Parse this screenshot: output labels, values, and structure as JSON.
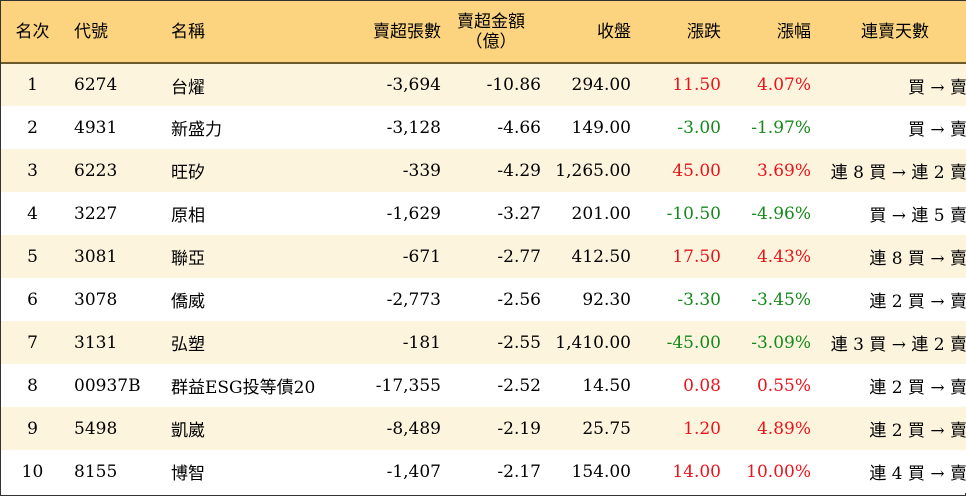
{
  "columns": {
    "rank": "名次",
    "code": "代號",
    "name": "名稱",
    "net_sell_shares": "賣超張數",
    "net_sell_amount_line1": "賣超金額",
    "net_sell_amount_line2": "（億）",
    "close": "收盤",
    "change": "漲跌",
    "change_pct": "漲幅",
    "consecutive_days": "連賣天數"
  },
  "colors": {
    "header_bg": "#fcd480",
    "odd_row_bg": "#fdf4de",
    "even_row_bg": "#ffffff",
    "up": "#e8141b",
    "down": "#15891a"
  },
  "rows": [
    {
      "rank": "1",
      "code": "6274",
      "name": "台燿",
      "shares": "-3,694",
      "amount": "-10.86",
      "close": "294.00",
      "change": "11.50",
      "pct": "4.07%",
      "dir": "up",
      "days": "買 → 賣"
    },
    {
      "rank": "2",
      "code": "4931",
      "name": "新盛力",
      "shares": "-3,128",
      "amount": "-4.66",
      "close": "149.00",
      "change": "-3.00",
      "pct": "-1.97%",
      "dir": "down",
      "days": "買 → 賣"
    },
    {
      "rank": "3",
      "code": "6223",
      "name": "旺矽",
      "shares": "-339",
      "amount": "-4.29",
      "close": "1,265.00",
      "change": "45.00",
      "pct": "3.69%",
      "dir": "up",
      "days": "連 8 買 → 連 2 賣"
    },
    {
      "rank": "4",
      "code": "3227",
      "name": "原相",
      "shares": "-1,629",
      "amount": "-3.27",
      "close": "201.00",
      "change": "-10.50",
      "pct": "-4.96%",
      "dir": "down",
      "days": "買 → 連 5 賣"
    },
    {
      "rank": "5",
      "code": "3081",
      "name": "聯亞",
      "shares": "-671",
      "amount": "-2.77",
      "close": "412.50",
      "change": "17.50",
      "pct": "4.43%",
      "dir": "up",
      "days": "連 8 買 → 賣"
    },
    {
      "rank": "6",
      "code": "3078",
      "name": "僑威",
      "shares": "-2,773",
      "amount": "-2.56",
      "close": "92.30",
      "change": "-3.30",
      "pct": "-3.45%",
      "dir": "down",
      "days": "連 2 買 → 賣"
    },
    {
      "rank": "7",
      "code": "3131",
      "name": "弘塑",
      "shares": "-181",
      "amount": "-2.55",
      "close": "1,410.00",
      "change": "-45.00",
      "pct": "-3.09%",
      "dir": "down",
      "days": "連 3 買 → 連 2 賣"
    },
    {
      "rank": "8",
      "code": "00937B",
      "name": "群益ESG投等債20",
      "shares": "-17,355",
      "amount": "-2.52",
      "close": "14.50",
      "change": "0.08",
      "pct": "0.55%",
      "dir": "up",
      "days": "連 2 買 → 賣"
    },
    {
      "rank": "9",
      "code": "5498",
      "name": "凱崴",
      "shares": "-8,489",
      "amount": "-2.19",
      "close": "25.75",
      "change": "1.20",
      "pct": "4.89%",
      "dir": "up",
      "days": "連 2 買 → 賣"
    },
    {
      "rank": "10",
      "code": "8155",
      "name": "博智",
      "shares": "-1,407",
      "amount": "-2.17",
      "close": "154.00",
      "change": "14.00",
      "pct": "10.00%",
      "dir": "up",
      "days": "連 4 買 → 賣"
    }
  ]
}
